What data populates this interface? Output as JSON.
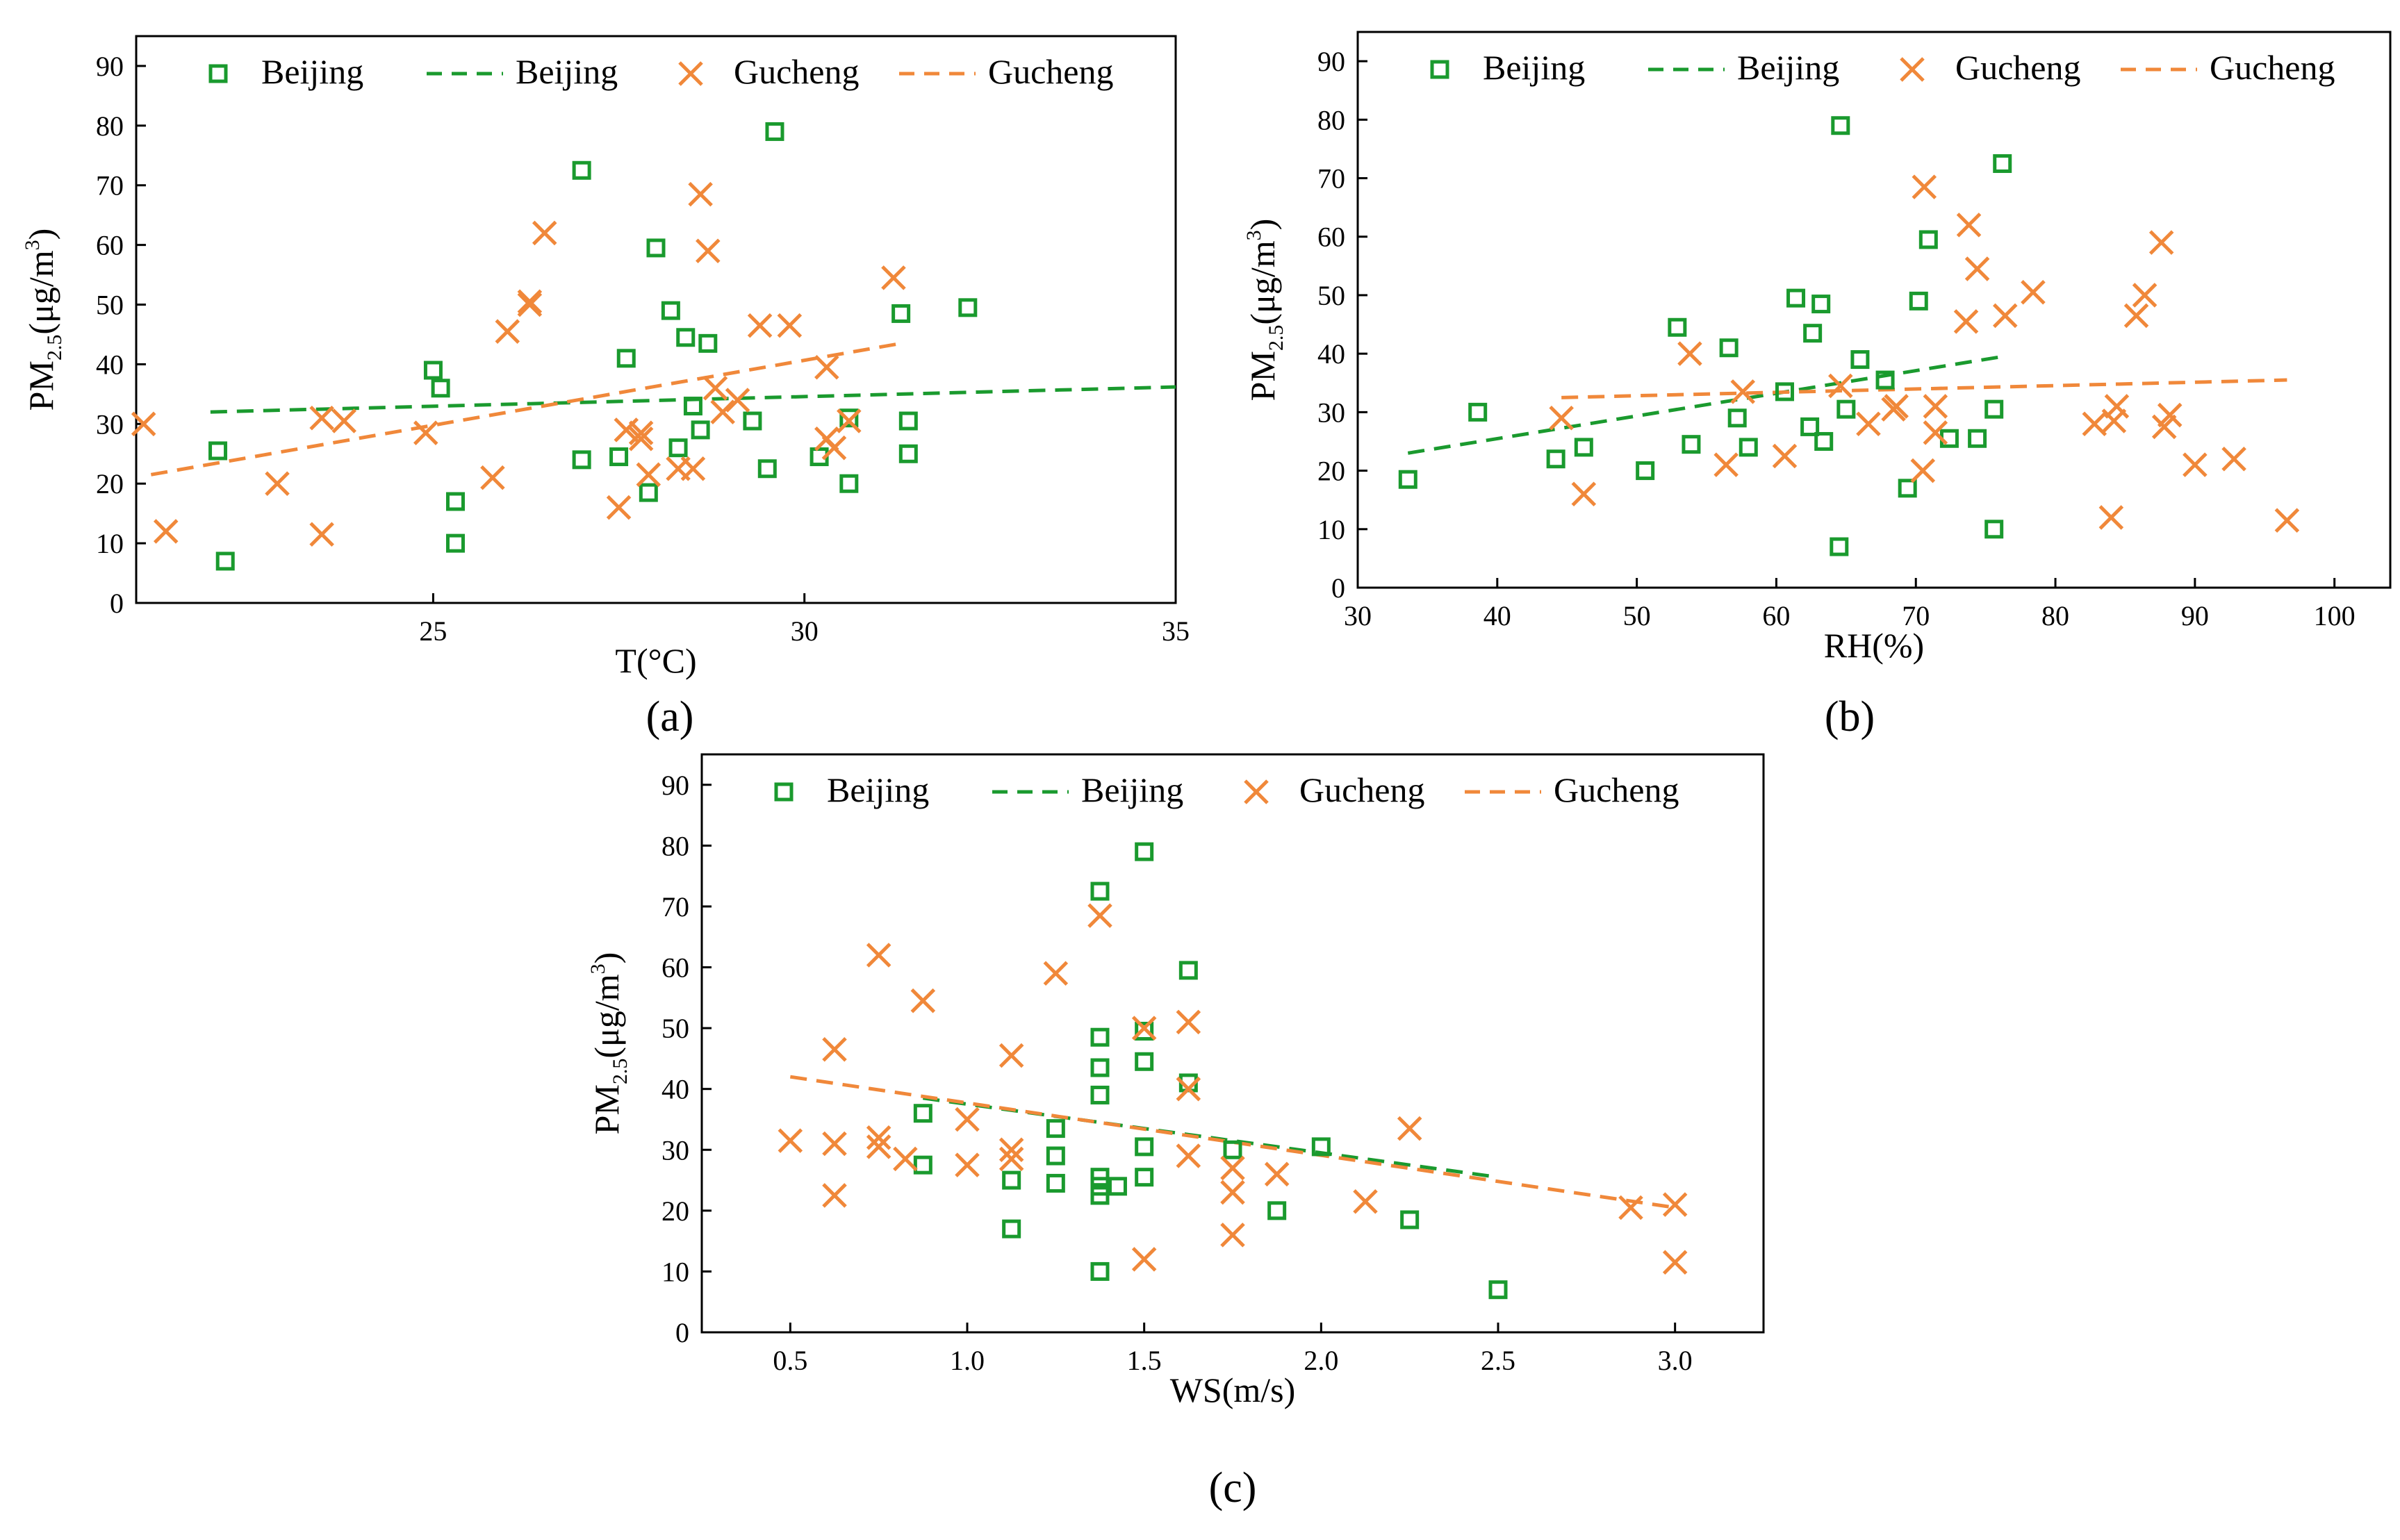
{
  "colors": {
    "beijing": "#1a9a2e",
    "gucheng": "#f0883a",
    "frame": "#000000"
  },
  "legend": {
    "beijing_marker": "Beijing",
    "beijing_line": "Beijing",
    "gucheng_marker": "Gucheng",
    "gucheng_line": "Gucheng"
  },
  "chart_data": [
    {
      "panel_label": "(a)",
      "type": "scatter",
      "xlabel": "T(°C)",
      "ylabel": "PM2.5(μg/m3)",
      "xlim": [
        21,
        35
      ],
      "ylim": [
        0,
        95
      ],
      "xticks": [
        25,
        30,
        35
      ],
      "yticks": [
        0,
        10,
        20,
        30,
        40,
        50,
        60,
        70,
        80,
        90
      ],
      "legend_position": "top",
      "series": [
        {
          "name": "Beijing",
          "kind": "points",
          "marker": "square",
          "points": [
            [
              22.1,
              25.5
            ],
            [
              22.2,
              7
            ],
            [
              25,
              39
            ],
            [
              25.1,
              36
            ],
            [
              25.3,
              17
            ],
            [
              25.3,
              10
            ],
            [
              27.0,
              72.5
            ],
            [
              27.0,
              24
            ],
            [
              27.5,
              24.5
            ],
            [
              27.6,
              41
            ],
            [
              27.9,
              18.5
            ],
            [
              28,
              59.5
            ],
            [
              28.2,
              49
            ],
            [
              28.3,
              26
            ],
            [
              28.4,
              44.5
            ],
            [
              28.5,
              33
            ],
            [
              28.6,
              29
            ],
            [
              28.7,
              43.5
            ],
            [
              29.3,
              30.5
            ],
            [
              29.5,
              22.5
            ],
            [
              29.6,
              79
            ],
            [
              30.2,
              24.5
            ],
            [
              30.6,
              20
            ],
            [
              30.6,
              31
            ],
            [
              31.3,
              48.5
            ],
            [
              31.4,
              30.5
            ],
            [
              31.4,
              25
            ],
            [
              32.2,
              49.5
            ]
          ]
        },
        {
          "name": "Beijing",
          "kind": "fit",
          "points": [
            [
              22,
              32
            ],
            [
              35,
              36.2
            ]
          ]
        },
        {
          "name": "Gucheng",
          "kind": "points",
          "marker": "x",
          "points": [
            [
              21.1,
              30
            ],
            [
              21.4,
              12
            ],
            [
              22.9,
              20
            ],
            [
              23.5,
              11.5
            ],
            [
              23.5,
              31
            ],
            [
              23.8,
              30.5
            ],
            [
              24.9,
              28.5
            ],
            [
              25.8,
              21
            ],
            [
              26.0,
              45.5
            ],
            [
              26.3,
              50.5
            ],
            [
              26.3,
              50
            ],
            [
              26.5,
              62
            ],
            [
              27.6,
              29
            ],
            [
              27.8,
              28.5
            ],
            [
              27.8,
              27.5
            ],
            [
              27.5,
              16
            ],
            [
              27.9,
              21.5
            ],
            [
              28.3,
              22.5
            ],
            [
              28.5,
              22.5
            ],
            [
              28.6,
              68.5
            ],
            [
              28.7,
              59
            ],
            [
              28.8,
              36
            ],
            [
              28.9,
              32
            ],
            [
              29.1,
              34
            ],
            [
              29.4,
              46.5
            ],
            [
              29.8,
              46.5
            ],
            [
              30.3,
              39.5
            ],
            [
              30.3,
              27.5
            ],
            [
              30.4,
              26
            ],
            [
              30.6,
              30.5
            ],
            [
              31.2,
              54.5
            ]
          ]
        },
        {
          "name": "Gucheng",
          "kind": "fit",
          "points": [
            [
              21.2,
              21.5
            ],
            [
              31.3,
              43.5
            ]
          ]
        }
      ]
    },
    {
      "panel_label": "(b)",
      "type": "scatter",
      "xlabel": "RH(%)",
      "ylabel": "PM2.5(μg/m3)",
      "xlim": [
        30,
        104
      ],
      "ylim": [
        0,
        95
      ],
      "xticks": [
        30,
        40,
        50,
        60,
        70,
        80,
        90,
        100
      ],
      "yticks": [
        0,
        10,
        20,
        30,
        40,
        50,
        60,
        70,
        80,
        90
      ],
      "legend_position": "top",
      "series": [
        {
          "name": "Beijing",
          "kind": "points",
          "marker": "square",
          "points": [
            [
              33.6,
              18.5
            ],
            [
              38.6,
              30
            ],
            [
              44.2,
              22
            ],
            [
              46.2,
              24
            ],
            [
              50.6,
              20
            ],
            [
              52.9,
              44.5
            ],
            [
              53.9,
              24.5
            ],
            [
              56.6,
              41
            ],
            [
              57.2,
              29
            ],
            [
              58.0,
              24
            ],
            [
              60.6,
              33.5
            ],
            [
              61.4,
              49.5
            ],
            [
              62.4,
              27.5
            ],
            [
              62.6,
              43.5
            ],
            [
              63.2,
              48.5
            ],
            [
              63.4,
              25
            ],
            [
              64.5,
              7
            ],
            [
              64.6,
              79
            ],
            [
              65.0,
              30.5
            ],
            [
              66.0,
              39
            ],
            [
              67.8,
              35.5
            ],
            [
              69.4,
              17
            ],
            [
              70.2,
              49
            ],
            [
              70.9,
              59.5
            ],
            [
              72.4,
              25.5
            ],
            [
              74.4,
              25.5
            ],
            [
              75.6,
              30.5
            ],
            [
              75.6,
              10
            ],
            [
              76.2,
              72.5
            ]
          ]
        },
        {
          "name": "Beijing",
          "kind": "fit",
          "points": [
            [
              33.6,
              23
            ],
            [
              76.2,
              39.5
            ]
          ]
        },
        {
          "name": "Gucheng",
          "kind": "points",
          "marker": "x",
          "points": [
            [
              44.6,
              29
            ],
            [
              46.2,
              16
            ],
            [
              53.8,
              40
            ],
            [
              56.4,
              21
            ],
            [
              57.6,
              33.5
            ],
            [
              60.6,
              22.5
            ],
            [
              64.6,
              34.5
            ],
            [
              66.6,
              28
            ],
            [
              68.4,
              30.5
            ],
            [
              68.6,
              31
            ],
            [
              70.6,
              68.5
            ],
            [
              70.5,
              20
            ],
            [
              71.4,
              26.5
            ],
            [
              71.4,
              31
            ],
            [
              73.6,
              45.5
            ],
            [
              73.8,
              62
            ],
            [
              74.4,
              54.5
            ],
            [
              76.4,
              46.5
            ],
            [
              78.4,
              50.5
            ],
            [
              82.8,
              28
            ],
            [
              84.0,
              12
            ],
            [
              84.2,
              28.5
            ],
            [
              84.4,
              31
            ],
            [
              85.8,
              46.5
            ],
            [
              86.4,
              50
            ],
            [
              87.6,
              59
            ],
            [
              87.8,
              27.5
            ],
            [
              88.2,
              29.5
            ],
            [
              90.0,
              21
            ],
            [
              92.8,
              22
            ],
            [
              96.6,
              11.5
            ]
          ]
        },
        {
          "name": "Gucheng",
          "kind": "fit",
          "points": [
            [
              44.6,
              32.5
            ],
            [
              96.6,
              35.5
            ]
          ]
        }
      ]
    },
    {
      "panel_label": "(c)",
      "type": "scatter",
      "xlabel": "WS(m/s)",
      "ylabel": "PM2.5(μg/m3)",
      "xlim": [
        0.25,
        3.25
      ],
      "ylim": [
        0,
        95
      ],
      "xticks": [
        0.5,
        1.0,
        1.5,
        2.0,
        2.5,
        3.0
      ],
      "xtick_labels": [
        "0.5",
        "1.0",
        "1.5",
        "2.0",
        "2.5",
        "3.0"
      ],
      "yticks": [
        0,
        10,
        20,
        30,
        40,
        50,
        60,
        70,
        80,
        90
      ],
      "legend_position": "top",
      "series": [
        {
          "name": "Beijing",
          "kind": "points",
          "marker": "square",
          "points": [
            [
              0.875,
              36
            ],
            [
              0.875,
              27.5
            ],
            [
              1.125,
              25
            ],
            [
              1.125,
              17
            ],
            [
              1.25,
              33.5
            ],
            [
              1.25,
              29
            ],
            [
              1.25,
              24.5
            ],
            [
              1.375,
              72.5
            ],
            [
              1.375,
              48.5
            ],
            [
              1.375,
              43.5
            ],
            [
              1.375,
              39
            ],
            [
              1.375,
              25.5
            ],
            [
              1.375,
              22.5
            ],
            [
              1.375,
              10
            ],
            [
              1.375,
              24
            ],
            [
              1.425,
              24
            ],
            [
              1.5,
              79
            ],
            [
              1.5,
              49.5
            ],
            [
              1.5,
              44.5
            ],
            [
              1.5,
              30.5
            ],
            [
              1.5,
              25.5
            ],
            [
              1.625,
              59.5
            ],
            [
              1.625,
              41
            ],
            [
              1.75,
              30
            ],
            [
              1.875,
              20
            ],
            [
              2.0,
              30.5
            ],
            [
              2.25,
              18.5
            ],
            [
              2.5,
              7
            ]
          ]
        },
        {
          "name": "Beijing",
          "kind": "fit",
          "points": [
            [
              0.875,
              38.5
            ],
            [
              2.5,
              25.5
            ]
          ]
        },
        {
          "name": "Gucheng",
          "kind": "points",
          "marker": "x",
          "points": [
            [
              0.5,
              31.5
            ],
            [
              0.625,
              46.5
            ],
            [
              0.625,
              31
            ],
            [
              0.625,
              22.5
            ],
            [
              0.75,
              62
            ],
            [
              0.75,
              32
            ],
            [
              0.75,
              30.5
            ],
            [
              0.825,
              28.5
            ],
            [
              0.875,
              54.5
            ],
            [
              1.0,
              35
            ],
            [
              1.0,
              27.5
            ],
            [
              1.125,
              45.5
            ],
            [
              1.125,
              30
            ],
            [
              1.125,
              28.5
            ],
            [
              1.25,
              59
            ],
            [
              1.375,
              68.5
            ],
            [
              1.5,
              50
            ],
            [
              1.5,
              12
            ],
            [
              1.625,
              51
            ],
            [
              1.625,
              40
            ],
            [
              1.625,
              29
            ],
            [
              1.75,
              27
            ],
            [
              1.75,
              23
            ],
            [
              1.75,
              16
            ],
            [
              1.875,
              26
            ],
            [
              2.125,
              21.5
            ],
            [
              2.25,
              33.5
            ],
            [
              2.875,
              20.5
            ],
            [
              3.0,
              21
            ],
            [
              3.0,
              11.5
            ]
          ]
        },
        {
          "name": "Gucheng",
          "kind": "fit",
          "points": [
            [
              0.5,
              42
            ],
            [
              3.0,
              20.5
            ]
          ]
        }
      ]
    }
  ]
}
